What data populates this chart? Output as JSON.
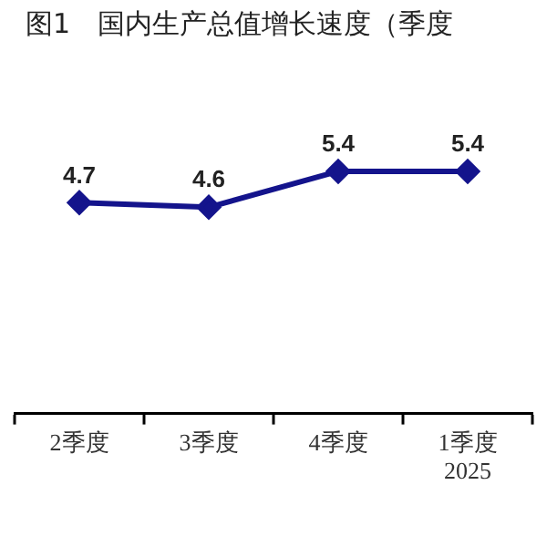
{
  "chart_data": {
    "type": "line",
    "title": "图1　国内生产总值增长速度（季度",
    "categories": [
      "2季度",
      "3季度",
      "4季度",
      "1季度\n2025"
    ],
    "values": [
      4.7,
      4.6,
      5.4,
      5.4
    ],
    "color": "#14148c",
    "marker": "diamond",
    "data_labels": true,
    "tick_labels": "x"
  }
}
